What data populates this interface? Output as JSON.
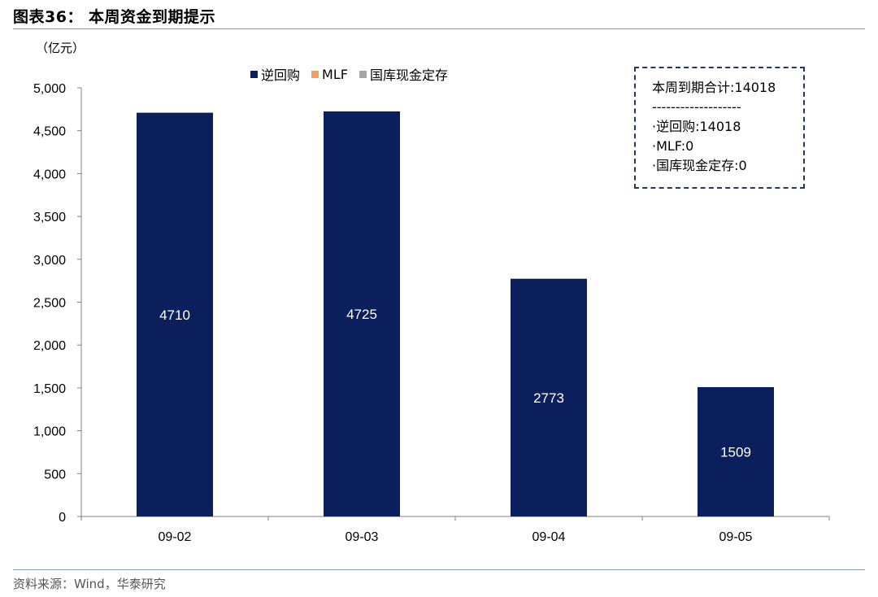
{
  "figure": {
    "title": "图表36：  本周资金到期提示",
    "unit": "（亿元）",
    "source": "资料来源：Wind，华泰研究"
  },
  "legend": [
    {
      "label": "逆回购",
      "color": "#0b1f5c"
    },
    {
      "label": "MLF",
      "color": "#f4a05a"
    },
    {
      "label": "国库现金定存",
      "color": "#a6a6a6"
    }
  ],
  "summary": {
    "total": "本周到期合计:14018",
    "divider": "-------------------",
    "line1": "·逆回购:14018",
    "line2": "·MLF:0",
    "line3": "·国库现金定存:0"
  },
  "chart_data": {
    "type": "bar",
    "categories": [
      "09-02",
      "09-03",
      "09-04",
      "09-05"
    ],
    "series": [
      {
        "name": "逆回购",
        "values": [
          4710,
          4725,
          2773,
          1509
        ],
        "color": "#0b1f5c"
      },
      {
        "name": "MLF",
        "values": [
          0,
          0,
          0,
          0
        ],
        "color": "#f4a05a"
      },
      {
        "name": "国库现金定存",
        "values": [
          0,
          0,
          0,
          0
        ],
        "color": "#a6a6a6"
      }
    ],
    "data_labels": [
      "4710",
      "4725",
      "2773",
      "1509"
    ],
    "ylim": [
      0,
      5000
    ],
    "yticks": [
      0,
      500,
      1000,
      1500,
      2000,
      2500,
      3000,
      3500,
      4000,
      4500,
      5000
    ],
    "ytick_labels": [
      "0",
      "500",
      "1,000",
      "1,500",
      "2,000",
      "2,500",
      "3,000",
      "3,500",
      "4,000",
      "4,500",
      "5,000"
    ],
    "grid": false,
    "legend_position": "top-center"
  }
}
